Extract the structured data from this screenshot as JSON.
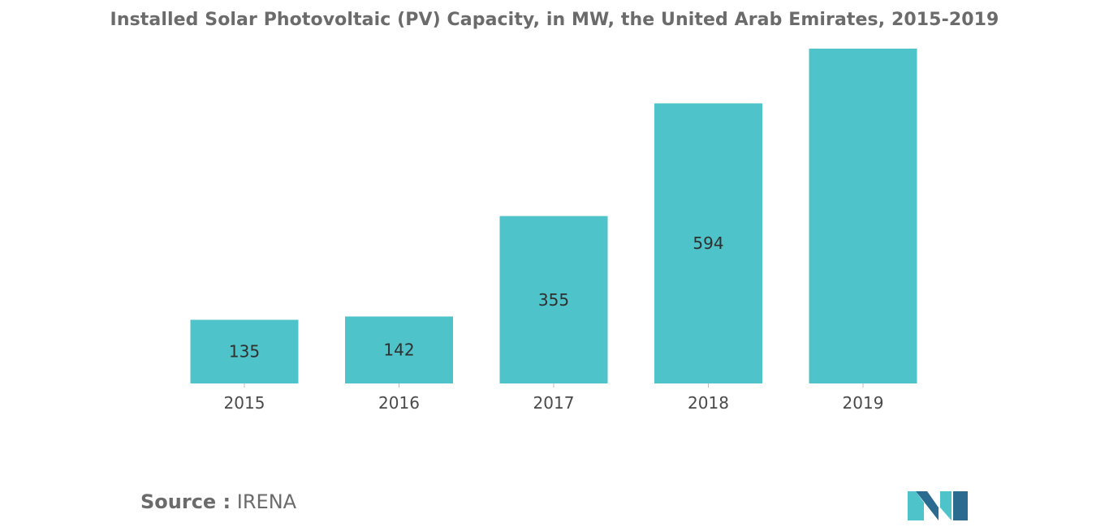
{
  "title": "Installed Solar Photovoltaic (PV) Capacity, in MW, the United Arab Emirates, 2015-2019",
  "source": {
    "prefix": "Source :",
    "name": "IRENA"
  },
  "colors": {
    "bar": "#4fc3ca",
    "logo_dark": "#2a6b8f",
    "logo_light": "#4fc3ca"
  },
  "chart_data": {
    "type": "bar",
    "title": "Installed Solar Photovoltaic (PV) Capacity, in MW, the United Arab Emirates, 2015-2019",
    "xlabel": "",
    "ylabel": "",
    "categories": [
      "2015",
      "2016",
      "2017",
      "2018",
      "2019"
    ],
    "values": [
      135,
      142,
      355,
      594,
      710
    ],
    "data_labels": [
      "135",
      "142",
      "355",
      "594",
      ""
    ],
    "ylim": [
      0,
      710
    ],
    "grid": false,
    "legend": "none"
  }
}
